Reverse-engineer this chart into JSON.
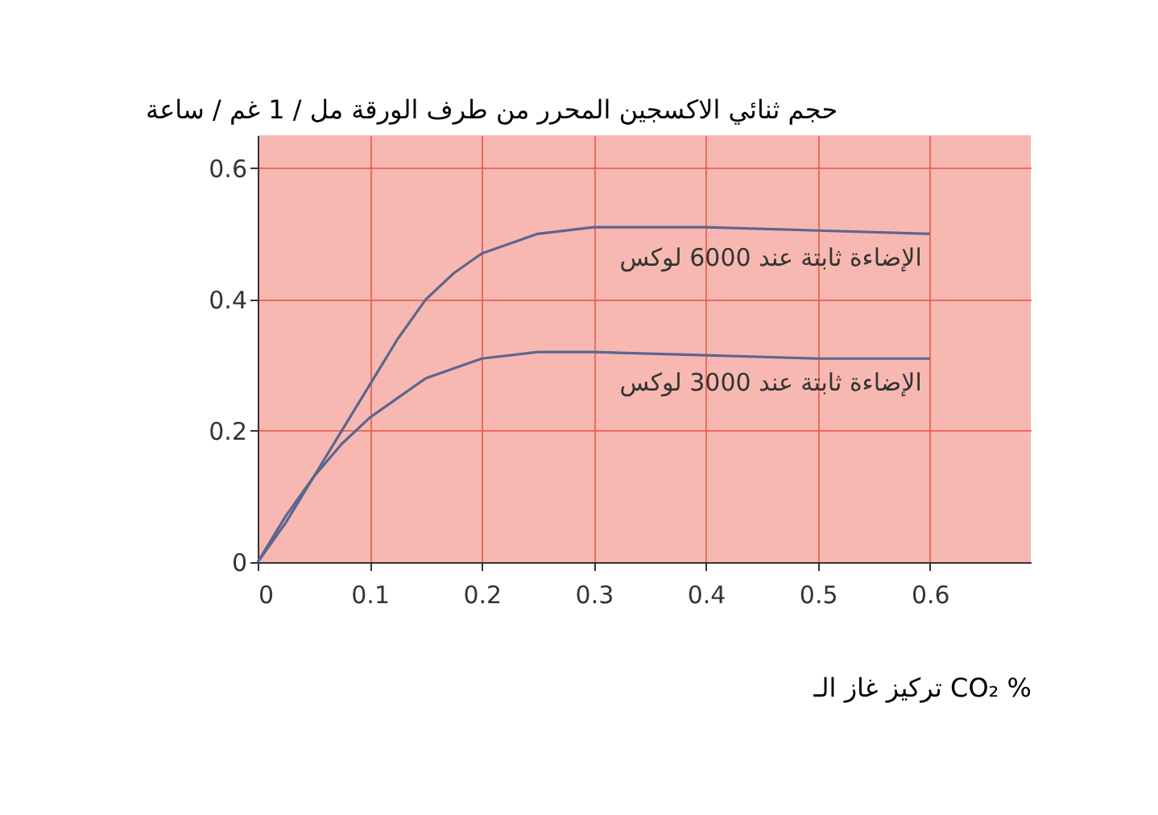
{
  "chart_data": {
    "type": "line",
    "ylabel": "حجم ثنائي الاكسجين المحرر من طرف الورقة  مل / 1 غم / ساعة",
    "xlabel": "تركيز غاز الـ CO₂  %",
    "series": [
      {
        "name": "الإضاءة ثابتة عند 6000 لوكس",
        "color": "#5b6590",
        "x": [
          0,
          0.025,
          0.05,
          0.075,
          0.1,
          0.125,
          0.15,
          0.175,
          0.2,
          0.25,
          0.3,
          0.4,
          0.5,
          0.6
        ],
        "values": [
          0,
          0.06,
          0.13,
          0.2,
          0.27,
          0.34,
          0.4,
          0.44,
          0.47,
          0.5,
          0.51,
          0.51,
          0.505,
          0.5
        ]
      },
      {
        "name": "الإضاءة ثابتة عند 3000 لوكس",
        "color": "#5b6590",
        "x": [
          0,
          0.025,
          0.05,
          0.075,
          0.1,
          0.125,
          0.15,
          0.2,
          0.25,
          0.3,
          0.4,
          0.5,
          0.6
        ],
        "values": [
          0,
          0.07,
          0.13,
          0.18,
          0.22,
          0.25,
          0.28,
          0.31,
          0.32,
          0.32,
          0.315,
          0.31,
          0.31
        ]
      }
    ],
    "xlim": [
      0,
      0.69
    ],
    "xticks": [
      0,
      0.1,
      0.2,
      0.3,
      0.4,
      0.5,
      0.6
    ],
    "ylim": [
      0,
      0.65
    ],
    "yticks": [
      0,
      0.2,
      0.4,
      0.6
    ],
    "grid": true,
    "marker": "none",
    "line_style": "solid"
  }
}
